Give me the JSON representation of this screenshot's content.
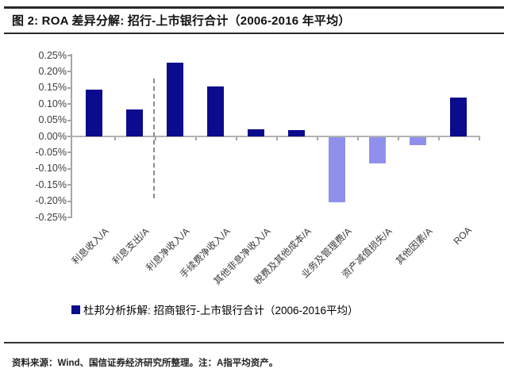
{
  "header": {
    "title": "图 2:  ROA 差异分解:  招行-上市银行合计（2006-2016 年平均）"
  },
  "chart_data": {
    "type": "bar",
    "title": "ROA 差异分解: 招行-上市银行合计（2006-2016 年平均）",
    "categories": [
      "利息收入/A",
      "利息支出/A",
      "利息净收入/A",
      "手续费净收入/A",
      "其他非息净收入/A",
      "税费及其他成本/A",
      "业务及管理费/A",
      "资产减值损失/A",
      "其他因素/A",
      "ROA"
    ],
    "values": [
      0.145,
      0.083,
      0.228,
      0.154,
      0.023,
      0.02,
      -0.201,
      -0.08,
      -0.024,
      0.119
    ],
    "unit": "%",
    "xlabel": "",
    "ylabel": "",
    "ylim": [
      -0.25,
      0.25
    ],
    "ytick_step": 0.05,
    "yticks": [
      "0.25%",
      "0.20%",
      "0.15%",
      "0.10%",
      "0.05%",
      "0.00%",
      "-0.05%",
      "-0.10%",
      "-0.15%",
      "-0.20%",
      "-0.25%"
    ],
    "grid": false,
    "positive_color": "#0b0b8d",
    "negative_color": "#9090ec",
    "separator_after_category_index": 1,
    "legend_position": "bottom",
    "legend": "杜邦分析拆解:  招商银行-上市银行合计（2006-2016平均）"
  },
  "footer": {
    "source": "资料来源：Wind、国信证券经济研究所整理。注：A指平均资产。"
  }
}
